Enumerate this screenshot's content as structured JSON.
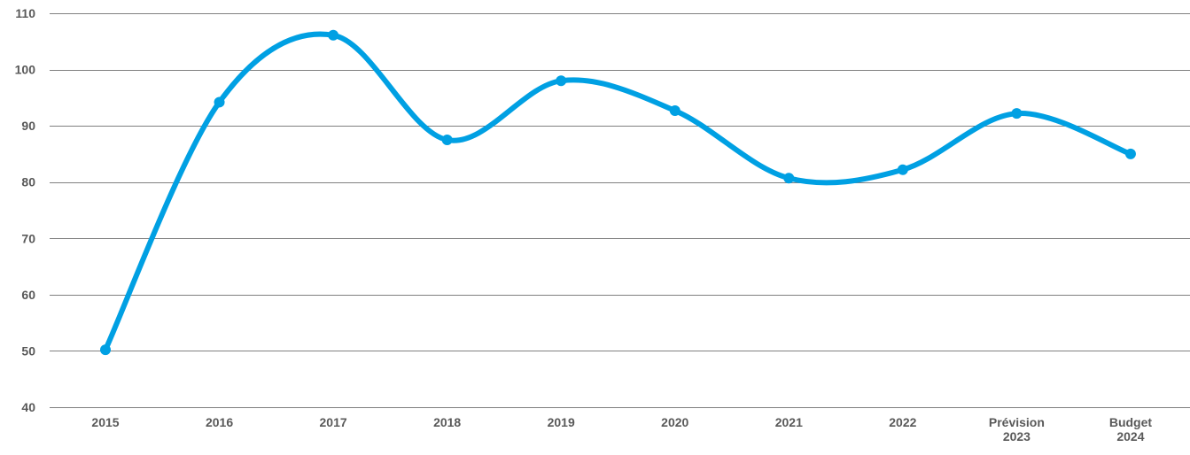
{
  "chart_data": {
    "type": "line",
    "categories": [
      "2015",
      "2016",
      "2017",
      "2018",
      "2019",
      "2020",
      "2021",
      "2022",
      "Prévision 2023",
      "Budget 2024"
    ],
    "category_lines": [
      [
        "2015"
      ],
      [
        "2016"
      ],
      [
        "2017"
      ],
      [
        "2018"
      ],
      [
        "2019"
      ],
      [
        "2020"
      ],
      [
        "2021"
      ],
      [
        "2022"
      ],
      [
        "Prévision",
        "2023"
      ],
      [
        "Budget",
        "2024"
      ]
    ],
    "series": [
      {
        "values": [
          50.2,
          94.2,
          106.1,
          87.5,
          98.0,
          92.7,
          80.7,
          82.2,
          92.2,
          85.0
        ],
        "color": "#00A0E3"
      }
    ],
    "ylim": [
      40,
      110
    ],
    "yticks": [
      40,
      50,
      60,
      70,
      80,
      90,
      100,
      110
    ],
    "grid": true,
    "line_style": "smooth",
    "markers": true,
    "legend": "none"
  }
}
